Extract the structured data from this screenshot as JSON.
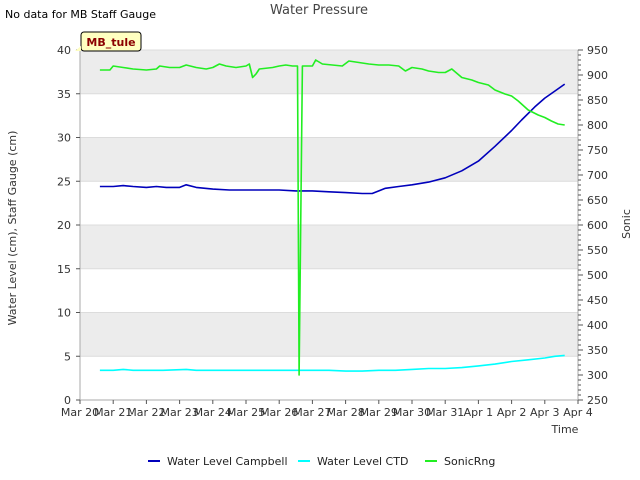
{
  "chart_data": {
    "type": "line",
    "title": "Water Pressure",
    "note": "No data for MB Staff Gauge",
    "badge": "MB_tule",
    "xlabel": "Time",
    "ylabel": "Water Level (cm), Staff Gauge (cm)",
    "y2label": "Sonic",
    "x_ticks": [
      "Mar 20",
      "Mar 21",
      "Mar 22",
      "Mar 23",
      "Mar 24",
      "Mar 25",
      "Mar 26",
      "Mar 27",
      "Mar 28",
      "Mar 29",
      "Mar 30",
      "Mar 31",
      "Apr 1",
      "Apr 2",
      "Apr 3",
      "Apr 4"
    ],
    "xlim": [
      0,
      15
    ],
    "ylim": [
      0,
      40
    ],
    "y_ticks": [
      0,
      5,
      10,
      15,
      20,
      25,
      30,
      35,
      40
    ],
    "y2lim": [
      250,
      950
    ],
    "y2_ticks": [
      250,
      300,
      350,
      400,
      450,
      500,
      550,
      600,
      650,
      700,
      750,
      800,
      850,
      900,
      950
    ],
    "series": [
      {
        "name": "Water Level Campbell",
        "axis": "left",
        "color": "#0000bb",
        "points": [
          [
            0.6,
            24.4
          ],
          [
            1.0,
            24.4
          ],
          [
            1.3,
            24.5
          ],
          [
            1.6,
            24.4
          ],
          [
            2.0,
            24.3
          ],
          [
            2.3,
            24.4
          ],
          [
            2.6,
            24.3
          ],
          [
            3.0,
            24.3
          ],
          [
            3.2,
            24.6
          ],
          [
            3.5,
            24.3
          ],
          [
            4.0,
            24.1
          ],
          [
            4.5,
            24.0
          ],
          [
            5.0,
            24.0
          ],
          [
            5.5,
            24.0
          ],
          [
            6.0,
            24.0
          ],
          [
            6.5,
            23.9
          ],
          [
            7.0,
            23.9
          ],
          [
            7.5,
            23.8
          ],
          [
            8.0,
            23.7
          ],
          [
            8.5,
            23.6
          ],
          [
            8.8,
            23.6
          ],
          [
            9.2,
            24.2
          ],
          [
            9.6,
            24.4
          ],
          [
            10.0,
            24.6
          ],
          [
            10.5,
            24.9
          ],
          [
            11.0,
            25.4
          ],
          [
            11.5,
            26.2
          ],
          [
            12.0,
            27.3
          ],
          [
            12.5,
            29.0
          ],
          [
            13.0,
            30.8
          ],
          [
            13.3,
            32.0
          ],
          [
            13.7,
            33.5
          ],
          [
            14.0,
            34.5
          ],
          [
            14.3,
            35.3
          ],
          [
            14.6,
            36.1
          ]
        ]
      },
      {
        "name": "Water Level CTD",
        "axis": "left",
        "color": "#00ffff",
        "points": [
          [
            0.6,
            3.4
          ],
          [
            1.0,
            3.4
          ],
          [
            1.3,
            3.5
          ],
          [
            1.6,
            3.4
          ],
          [
            2.5,
            3.4
          ],
          [
            3.2,
            3.5
          ],
          [
            3.5,
            3.4
          ],
          [
            4.5,
            3.4
          ],
          [
            5.5,
            3.4
          ],
          [
            6.5,
            3.4
          ],
          [
            7.5,
            3.4
          ],
          [
            8.0,
            3.3
          ],
          [
            8.5,
            3.3
          ],
          [
            9.0,
            3.4
          ],
          [
            9.5,
            3.4
          ],
          [
            10.0,
            3.5
          ],
          [
            10.5,
            3.6
          ],
          [
            11.0,
            3.6
          ],
          [
            11.5,
            3.7
          ],
          [
            12.0,
            3.9
          ],
          [
            12.5,
            4.1
          ],
          [
            13.0,
            4.4
          ],
          [
            13.5,
            4.6
          ],
          [
            14.0,
            4.8
          ],
          [
            14.3,
            5.0
          ],
          [
            14.6,
            5.1
          ]
        ]
      },
      {
        "name": "SonicRng",
        "axis": "right",
        "color": "#22ee22",
        "points": [
          [
            0.6,
            910
          ],
          [
            0.9,
            910
          ],
          [
            1.0,
            918
          ],
          [
            1.3,
            915
          ],
          [
            1.6,
            912
          ],
          [
            2.0,
            910
          ],
          [
            2.3,
            912
          ],
          [
            2.4,
            918
          ],
          [
            2.7,
            915
          ],
          [
            3.0,
            915
          ],
          [
            3.2,
            920
          ],
          [
            3.5,
            915
          ],
          [
            3.8,
            912
          ],
          [
            4.0,
            915
          ],
          [
            4.2,
            922
          ],
          [
            4.4,
            918
          ],
          [
            4.7,
            915
          ],
          [
            5.0,
            918
          ],
          [
            5.1,
            922
          ],
          [
            5.2,
            895
          ],
          [
            5.3,
            902
          ],
          [
            5.4,
            912
          ],
          [
            5.8,
            915
          ],
          [
            6.0,
            918
          ],
          [
            6.2,
            920
          ],
          [
            6.4,
            918
          ],
          [
            6.55,
            918
          ],
          [
            6.6,
            300
          ],
          [
            6.7,
            918
          ],
          [
            6.9,
            918
          ],
          [
            7.0,
            918
          ],
          [
            7.1,
            930
          ],
          [
            7.3,
            922
          ],
          [
            7.6,
            920
          ],
          [
            7.9,
            918
          ],
          [
            8.1,
            928
          ],
          [
            8.4,
            925
          ],
          [
            8.7,
            922
          ],
          [
            9.0,
            920
          ],
          [
            9.3,
            920
          ],
          [
            9.6,
            918
          ],
          [
            9.8,
            908
          ],
          [
            10.0,
            915
          ],
          [
            10.3,
            912
          ],
          [
            10.5,
            908
          ],
          [
            10.8,
            905
          ],
          [
            11.0,
            905
          ],
          [
            11.2,
            912
          ],
          [
            11.5,
            895
          ],
          [
            11.8,
            890
          ],
          [
            12.0,
            885
          ],
          [
            12.3,
            880
          ],
          [
            12.5,
            870
          ],
          [
            12.8,
            862
          ],
          [
            13.0,
            858
          ],
          [
            13.2,
            848
          ],
          [
            13.5,
            830
          ],
          [
            13.8,
            820
          ],
          [
            14.0,
            815
          ],
          [
            14.2,
            808
          ],
          [
            14.4,
            802
          ],
          [
            14.6,
            800
          ]
        ]
      }
    ],
    "legend_position": "bottom"
  }
}
